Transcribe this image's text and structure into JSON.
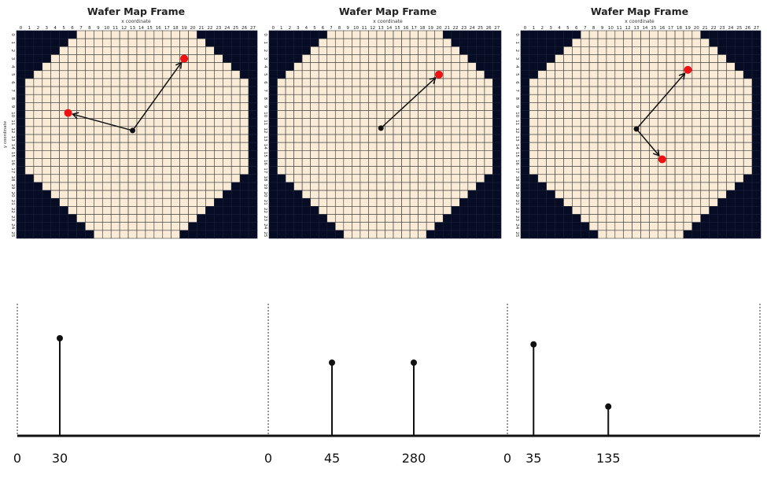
{
  "chart_data": [
    {
      "type": "heatmap",
      "title": "Wafer Map Frame",
      "xlabel": "x coordinate",
      "ylabel": "y coordinate",
      "x_ticks": [
        0,
        1,
        2,
        3,
        4,
        5,
        6,
        7,
        8,
        9,
        10,
        11,
        12,
        13,
        14,
        15,
        16,
        17,
        18,
        19,
        20,
        21,
        22,
        23,
        24,
        25,
        26,
        27
      ],
      "y_ticks": [
        0,
        1,
        2,
        3,
        4,
        5,
        6,
        7,
        8,
        9,
        10,
        11,
        12,
        13,
        14,
        15,
        16,
        17,
        18,
        19,
        20,
        21,
        22,
        23,
        24,
        25
      ],
      "colors": {
        "die": "#faebd7",
        "background": "#060c24",
        "grid": "#1a2038"
      },
      "center": {
        "x": 13.5,
        "y": 12.5
      },
      "defects": [
        {
          "x": 19.5,
          "y": 3.5
        },
        {
          "x": 6.0,
          "y": 10.3
        }
      ]
    },
    {
      "type": "heatmap",
      "title": "Wafer Map Frame",
      "xlabel": "x coordinate",
      "ylabel": "",
      "x_ticks": [
        0,
        1,
        2,
        3,
        4,
        5,
        6,
        7,
        8,
        9,
        10,
        11,
        12,
        13,
        14,
        15,
        16,
        17,
        18,
        19,
        20,
        21,
        22,
        23,
        24,
        25,
        26,
        27
      ],
      "y_ticks": [
        0,
        1,
        2,
        3,
        4,
        5,
        6,
        7,
        8,
        9,
        10,
        11,
        12,
        13,
        14,
        15,
        16,
        17,
        18,
        19,
        20,
        21,
        22,
        23,
        24,
        25
      ],
      "colors": {
        "die": "#faebd7",
        "background": "#060c24",
        "grid": "#1a2038"
      },
      "center": {
        "x": 13.5,
        "y": 12.2
      },
      "defects": [
        {
          "x": 20.5,
          "y": 5.5
        }
      ]
    },
    {
      "type": "heatmap",
      "title": "Wafer Map Frame",
      "xlabel": "x coordinate",
      "ylabel": "",
      "x_ticks": [
        0,
        1,
        2,
        3,
        4,
        5,
        6,
        7,
        8,
        9,
        10,
        11,
        12,
        13,
        14,
        15,
        16,
        17,
        18,
        19,
        20,
        21,
        22,
        23,
        24,
        25,
        26,
        27
      ],
      "y_ticks": [
        0,
        1,
        2,
        3,
        4,
        5,
        6,
        7,
        8,
        9,
        10,
        11,
        12,
        13,
        14,
        15,
        16,
        17,
        18,
        19,
        20,
        21,
        22,
        23,
        24,
        25
      ],
      "colors": {
        "die": "#faebd7",
        "background": "#060c24",
        "grid": "#1a2038"
      },
      "center": {
        "x": 13.5,
        "y": 12.3
      },
      "defects": [
        {
          "x": 19.5,
          "y": 4.9
        },
        {
          "x": 16.5,
          "y": 16.1
        }
      ]
    },
    {
      "type": "bar",
      "subtype": "stem",
      "segments": [
        {
          "x_start": 0,
          "tick_labels": [
            "0",
            "30",
            "280"
          ],
          "stems": [
            {
              "x": 30,
              "height": 0.8
            },
            {
              "x": 280,
              "height": 0.6
            }
          ]
        },
        {
          "x_start": 0,
          "tick_labels": [
            "0",
            "45"
          ],
          "stems": [
            {
              "x": 45,
              "height": 0.6
            }
          ]
        },
        {
          "x_start": 0,
          "tick_labels": [
            "0",
            "35",
            "135"
          ],
          "stems": [
            {
              "x": 35,
              "height": 0.75
            },
            {
              "x": 135,
              "height": 0.24
            }
          ]
        }
      ]
    }
  ]
}
